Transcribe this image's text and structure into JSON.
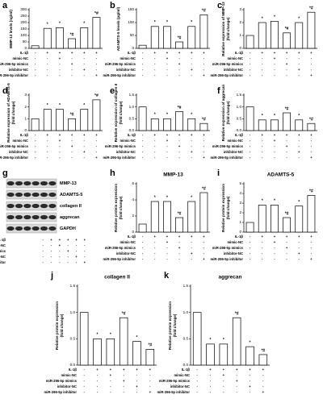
{
  "conditions": [
    {
      "label": "IL-1β",
      "signs": [
        "-",
        "+",
        "+",
        "+",
        "+",
        "+"
      ]
    },
    {
      "label": "mimic-NC",
      "signs": [
        "-",
        "-",
        "+",
        "-",
        "-",
        "-"
      ]
    },
    {
      "label": "miR-296-5p mimics",
      "signs": [
        "-",
        "-",
        "-",
        "+",
        "-",
        "-"
      ]
    },
    {
      "label": "inhibitor-NC",
      "signs": [
        "-",
        "-",
        "-",
        "-",
        "+",
        "-"
      ]
    },
    {
      "label": "miR-296-5p inhibitor",
      "signs": [
        "-",
        "-",
        "-",
        "-",
        "-",
        "+"
      ]
    }
  ],
  "blot": {
    "label": "g",
    "proteins": [
      "MMP-13",
      "ADAMTS-5",
      "collagen II",
      "aggrecan",
      "GAPDH"
    ]
  },
  "chart_data": [
    {
      "type": "bar",
      "label": "a",
      "y_label": [
        "MMP-13 levels (ng/ml)"
      ],
      "values": [
        20,
        155,
        160,
        75,
        160,
        240
      ],
      "marks": [
        null,
        "*",
        "*",
        "*#",
        "*",
        "*#"
      ],
      "ylim": [
        0,
        300
      ],
      "yticks": [
        0,
        50,
        100,
        150,
        200,
        250,
        300
      ],
      "color": "#ffffff"
    },
    {
      "type": "bar",
      "label": "b",
      "y_label": [
        "ADAMTS-5 levels (pg/ml)"
      ],
      "values": [
        12,
        85,
        85,
        25,
        85,
        130
      ],
      "marks": [
        null,
        "*",
        "*",
        "*#",
        "*",
        "*#"
      ],
      "ylim": [
        0,
        150
      ],
      "yticks": [
        0,
        50,
        100,
        150
      ],
      "color": "#ffffff"
    },
    {
      "type": "bar",
      "label": "c",
      "y_label": [
        "Relative expression of MMP-13",
        "(fold change)"
      ],
      "values": [
        1.0,
        2.0,
        2.1,
        1.2,
        2.0,
        2.8
      ],
      "marks": [
        null,
        "*",
        "*",
        "*#",
        "*",
        "*#"
      ],
      "ylim": [
        0,
        3
      ],
      "yticks": [
        0,
        1,
        2,
        3
      ],
      "color": "#ffffff"
    },
    {
      "type": "bar",
      "label": "d",
      "y_label": [
        "Relative expression of ADAMTS-5",
        "(fold change)"
      ],
      "values": [
        1.0,
        1.8,
        1.8,
        1.0,
        1.8,
        2.6
      ],
      "marks": [
        null,
        "*",
        "*",
        "*#",
        "*",
        "*#"
      ],
      "ylim": [
        0,
        3
      ],
      "yticks": [
        0,
        1,
        2,
        3
      ],
      "color": "#ffffff"
    },
    {
      "type": "bar",
      "label": "e",
      "y_label": [
        "Relative expression of collagen II",
        "(fold change)"
      ],
      "values": [
        1.0,
        0.5,
        0.5,
        0.8,
        0.5,
        0.3
      ],
      "marks": [
        null,
        "*",
        "*",
        "*#",
        "*",
        "*#"
      ],
      "ylim": [
        0,
        1.5
      ],
      "yticks": [
        {
          "value": 0,
          "label": "0.0"
        },
        0.5,
        {
          "value": 1,
          "label": "1.0"
        },
        1.5
      ],
      "color": "#ffffff"
    },
    {
      "type": "bar",
      "label": "f",
      "y_label": [
        "Relative expression of aggrecan",
        "(fold change)"
      ],
      "values": [
        1.0,
        0.45,
        0.45,
        0.75,
        0.45,
        0.3
      ],
      "marks": [
        null,
        "*",
        "*",
        "*#",
        "*",
        "*#"
      ],
      "ylim": [
        0,
        1.5
      ],
      "yticks": [
        {
          "value": 0,
          "label": "0.0"
        },
        0.5,
        {
          "value": 1,
          "label": "1.0"
        },
        1.5
      ],
      "color": "#ffffff"
    },
    {
      "type": "bar",
      "label": "h",
      "title": "MMP-13",
      "y_label": [
        "Relative protein expression",
        "(fold change)"
      ],
      "values": [
        1,
        3.8,
        3.8,
        1.8,
        3.8,
        4.9
      ],
      "marks": [
        null,
        "*",
        "*",
        "*#",
        "*",
        "*#"
      ],
      "ylim": [
        0,
        6
      ],
      "yticks": [
        0,
        2,
        4,
        6
      ],
      "color": "#ffffff"
    },
    {
      "type": "bar",
      "label": "i",
      "title": "ADAMTS-5",
      "y_label": [
        "Relative protein expression",
        "(fold change)"
      ],
      "values": [
        1,
        2.8,
        2.8,
        1.5,
        2.7,
        3.8
      ],
      "marks": [
        null,
        "*",
        "*",
        "*#",
        "*",
        "*#"
      ],
      "ylim": [
        0,
        5
      ],
      "yticks": [
        0,
        1,
        2,
        3,
        4,
        5
      ],
      "color": "#ffffff"
    },
    {
      "type": "bar",
      "label": "j",
      "title": "collagen II",
      "y_label": [
        "Relative protein expression",
        "(fold change)"
      ],
      "values": [
        1.0,
        0.5,
        0.5,
        0.9,
        0.45,
        0.3
      ],
      "marks": [
        null,
        "*",
        "*",
        "*#",
        "*",
        "*#"
      ],
      "ylim": [
        0,
        1.5
      ],
      "yticks": [
        {
          "value": 0,
          "label": "0.0"
        },
        0.5,
        {
          "value": 1,
          "label": "1.0"
        },
        1.5
      ],
      "color": "#ffffff"
    },
    {
      "type": "bar",
      "label": "k",
      "title": "aggrecan",
      "y_label": [
        "Relative protein expression",
        "(fold change)"
      ],
      "values": [
        1.0,
        0.4,
        0.4,
        0.9,
        0.35,
        0.2
      ],
      "marks": [
        null,
        "*",
        "*",
        "*#",
        "*",
        "*#"
      ],
      "ylim": [
        0,
        1.5
      ],
      "yticks": [
        {
          "value": 0,
          "label": "0.0"
        },
        0.5,
        {
          "value": 1,
          "label": "1.0"
        },
        1.5
      ],
      "color": "#ffffff"
    }
  ]
}
